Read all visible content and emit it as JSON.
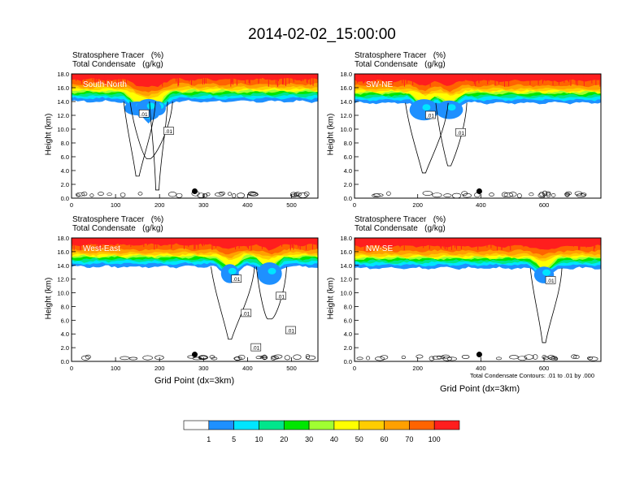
{
  "title": "2014-02-02_15:00:00",
  "colors": {
    "levels": [
      "#ffffff",
      "#1e90ff",
      "#00e5ff",
      "#00e68c",
      "#00e600",
      "#a0ff32",
      "#ffff00",
      "#ffcd00",
      "#ffa000",
      "#ff6400",
      "#ff1e1e"
    ],
    "contour": "#000000"
  },
  "colorbar": {
    "labels": [
      "1",
      "5",
      "10",
      "20",
      "30",
      "40",
      "50",
      "60",
      "70",
      "100"
    ]
  },
  "chart_data": [
    {
      "type": "heatmap",
      "panel": "South-North",
      "label1": "Stratosphere Tracer   (%)",
      "label2": "Total Condensate   (g/kg)",
      "in_plot_label": "South-North",
      "ylabel": "Height (km)",
      "xlabel": "",
      "xlim": [
        0,
        560
      ],
      "xticks": [
        0,
        100,
        200,
        300,
        400,
        500
      ],
      "ylim": [
        0,
        18
      ],
      "yticks": [
        "0.0",
        "2.0",
        "4.0",
        "6.0",
        "8.0",
        "10.0",
        "12.0",
        "14.0",
        "16.0",
        "18.0"
      ],
      "contour_labels": [
        ".01",
        ".01"
      ],
      "marker_x": 280,
      "cloud_base_x": [
        150,
        195,
        175
      ],
      "tracer_top_km": 14.2
    },
    {
      "type": "heatmap",
      "panel": "SW-NE",
      "label1": "Stratosphere Tracer   (%)",
      "label2": "Total Condensate   (g/kg)",
      "in_plot_label": "SW-NE",
      "ylabel": "Height (km)",
      "xlabel": "",
      "xlim": [
        0,
        780
      ],
      "xticks": [
        0,
        200,
        400,
        600
      ],
      "ylim": [
        0,
        18
      ],
      "yticks": [
        "0.0",
        "2.0",
        "4.0",
        "6.0",
        "8.0",
        "10.0",
        "12.0",
        "14.0",
        "16.0",
        "18.0"
      ],
      "contour_labels": [
        ".01",
        ".01"
      ],
      "marker_x": 395,
      "cloud_base_x": [
        220,
        300
      ],
      "tracer_top_km": 14.0
    },
    {
      "type": "heatmap",
      "panel": "West-East",
      "label1": "Stratosphere Tracer   (%)",
      "label2": "Total Condensate   (g/kg)",
      "in_plot_label": "West-East",
      "ylabel": "Height (km)",
      "xlabel": "Grid Point (dx=3km)",
      "xlim": [
        0,
        560
      ],
      "xticks": [
        0,
        100,
        200,
        300,
        400,
        500
      ],
      "ylim": [
        0,
        18
      ],
      "yticks": [
        "0.0",
        "2.0",
        "4.0",
        "6.0",
        "8.0",
        "10.0",
        "12.0",
        "14.0",
        "16.0",
        "18.0"
      ],
      "contour_labels": [
        ".01",
        ".01",
        ".01",
        ".01",
        ".01"
      ],
      "marker_x": 280,
      "cloud_base_x": [
        360,
        450
      ],
      "tracer_top_km": 14.0
    },
    {
      "type": "heatmap",
      "panel": "NW-SE",
      "label1": "Stratosphere Tracer   (%)",
      "label2": "Total Condensate   (g/kg)",
      "in_plot_label": "NW-SE",
      "ylabel": "Height (km)",
      "xlabel": "Grid Point (dx=3km)",
      "xlim": [
        0,
        780
      ],
      "xticks": [
        0,
        200,
        400,
        600
      ],
      "ylim": [
        0,
        18
      ],
      "yticks": [
        "0.0",
        "2.0",
        "4.0",
        "6.0",
        "8.0",
        "10.0",
        "12.0",
        "14.0",
        "16.0",
        "18.0"
      ],
      "contour_labels": [
        ".01"
      ],
      "footnote": "Total Condensate Contours: .01 to .01 by .000",
      "marker_x": 395,
      "cloud_base_x": [
        600
      ],
      "tracer_top_km": 13.8
    }
  ]
}
